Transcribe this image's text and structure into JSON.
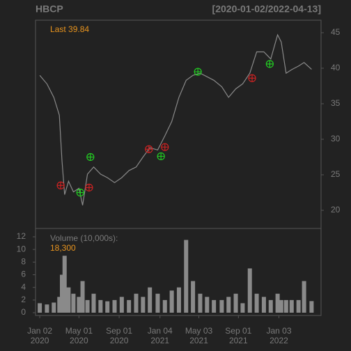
{
  "chart_data": {
    "type": "line",
    "title": "HBCP",
    "subtitle": "[2020-01-02/2022-04-13]",
    "last_prefix": "Last",
    "last_value": 39.84,
    "volume_label": "Volume (10,000s):",
    "volume_last": {
      "value": 18300,
      "label": "18,300"
    },
    "x": [
      "2020-01-02",
      "2020-01-24",
      "2020-02-14",
      "2020-03-02",
      "2020-03-10",
      "2020-03-18",
      "2020-03-30",
      "2020-04-14",
      "2020-05-01",
      "2020-05-12",
      "2020-05-27",
      "2020-06-15",
      "2020-07-06",
      "2020-07-27",
      "2020-08-18",
      "2020-09-09",
      "2020-10-01",
      "2020-10-23",
      "2020-11-13",
      "2020-12-04",
      "2020-12-28",
      "2021-01-19",
      "2021-02-09",
      "2021-03-03",
      "2021-03-25",
      "2021-04-15",
      "2021-05-07",
      "2021-05-28",
      "2021-06-18",
      "2021-07-12",
      "2021-08-02",
      "2021-08-24",
      "2021-09-14",
      "2021-10-06",
      "2021-10-27",
      "2021-11-18",
      "2021-12-09",
      "2021-12-30",
      "2022-01-10",
      "2022-01-25",
      "2022-02-11",
      "2022-03-04",
      "2022-03-21",
      "2022-04-13"
    ],
    "series": [
      {
        "name": "Close",
        "color": "#8a8a8a",
        "values": [
          39.0,
          37.8,
          35.9,
          33.4,
          27.0,
          22.2,
          24.1,
          22.6,
          23.1,
          20.7,
          25.1,
          26.1,
          25.1,
          24.6,
          23.9,
          24.6,
          25.6,
          26.1,
          27.5,
          28.8,
          28.5,
          30.5,
          32.5,
          35.9,
          38.3,
          39.0,
          39.3,
          38.8,
          38.3,
          37.4,
          35.9,
          37.1,
          37.8,
          39.3,
          42.3,
          42.3,
          41.3,
          44.7,
          43.7,
          39.3,
          39.8,
          40.3,
          40.8,
          39.84
        ]
      },
      {
        "name": "Volume",
        "color": "#8a8a8a",
        "axis": "y2",
        "values": [
          1.5,
          1.3,
          1.6,
          2.5,
          6,
          9,
          4,
          3,
          2.5,
          5,
          2,
          3,
          2,
          1.8,
          2,
          2.5,
          2,
          3,
          2.5,
          4,
          3,
          2,
          3.5,
          4,
          11.5,
          5,
          3,
          2.5,
          2,
          2,
          2.5,
          3,
          1.5,
          7,
          3,
          2.5,
          2,
          3,
          2,
          2,
          2,
          2,
          5,
          1.83
        ]
      }
    ],
    "signals": [
      {
        "x": "2020-03-06",
        "value": 23.5,
        "color": "#cc2222"
      },
      {
        "x": "2020-05-05",
        "value": 22.5,
        "color": "#22cc22"
      },
      {
        "x": "2020-06-01",
        "value": 23.2,
        "color": "#cc2222"
      },
      {
        "x": "2020-06-05",
        "value": 27.5,
        "color": "#22cc22"
      },
      {
        "x": "2020-12-01",
        "value": 28.6,
        "color": "#cc2222"
      },
      {
        "x": "2021-01-07",
        "value": 27.6,
        "color": "#22cc22"
      },
      {
        "x": "2021-01-19",
        "value": 28.9,
        "color": "#cc2222"
      },
      {
        "x": "2021-04-30",
        "value": 39.5,
        "color": "#22cc22"
      },
      {
        "x": "2021-10-13",
        "value": 38.6,
        "color": "#cc2222"
      },
      {
        "x": "2021-12-06",
        "value": 40.6,
        "color": "#22cc22"
      }
    ],
    "xlim": [
      "2019-12-20",
      "2022-05-12"
    ],
    "xticks": [
      {
        "value": "2020-01-02",
        "label": "Jan 02 2020"
      },
      {
        "value": "2020-05-01",
        "label": "May 01 2020"
      },
      {
        "value": "2020-09-01",
        "label": "Sep 01 2020"
      },
      {
        "value": "2021-01-04",
        "label": "Jan 04 2021"
      },
      {
        "value": "2021-05-03",
        "label": "May 03 2021"
      },
      {
        "value": "2021-09-01",
        "label": "Sep 01 2021"
      },
      {
        "value": "2022-01-03",
        "label": "Jan 03 2022"
      }
    ],
    "ylim": [
      17.45,
      46.76
    ],
    "yticks": [
      20,
      25,
      30,
      35,
      40,
      45
    ],
    "y2lim": [
      -0.44,
      13.32
    ],
    "y2ticks": [
      0,
      2,
      4,
      6,
      8,
      10,
      12
    ],
    "accent_color": "#e8941e"
  }
}
